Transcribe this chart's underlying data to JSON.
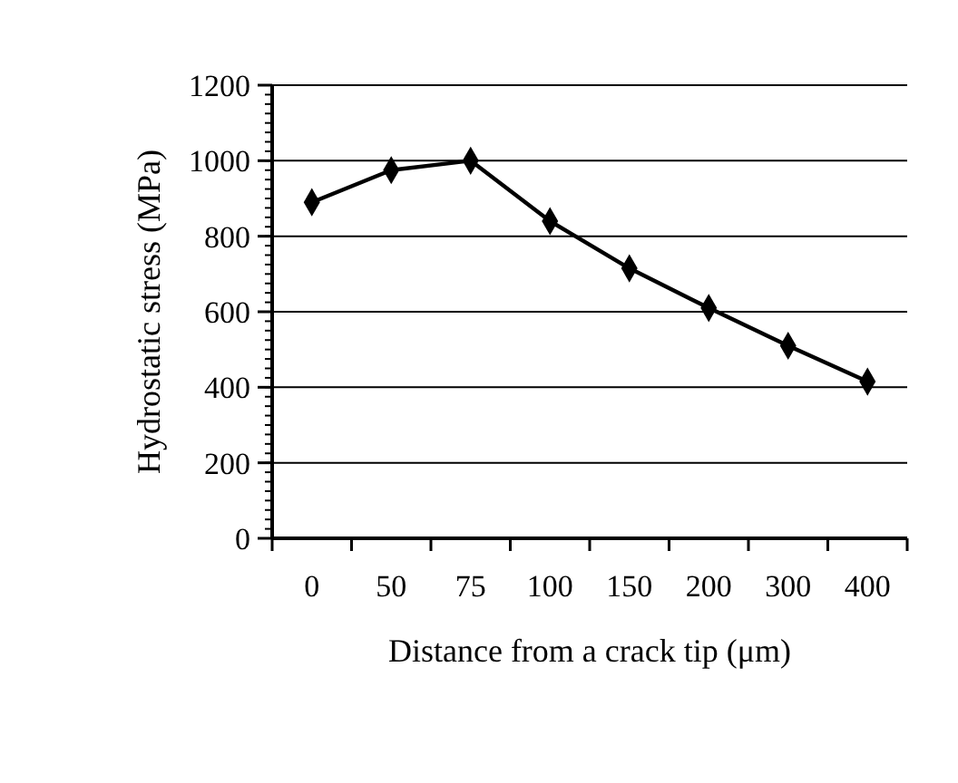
{
  "chart_data": {
    "type": "line",
    "xlabel": "Distance from a crack tip (μm)",
    "ylabel": "Hydrostatic stress (MPa)",
    "categories": [
      "0",
      "50",
      "75",
      "100",
      "150",
      "200",
      "300",
      "400"
    ],
    "series": [
      {
        "color": "#000000",
        "values": [
          890,
          975,
          1000,
          840,
          715,
          610,
          510,
          415
        ]
      }
    ],
    "ylim": [
      0,
      1200
    ],
    "yticks": [
      0,
      200,
      400,
      600,
      800,
      1000,
      1200
    ],
    "grid": "y",
    "marker": "diamond",
    "line_style": "solid"
  }
}
